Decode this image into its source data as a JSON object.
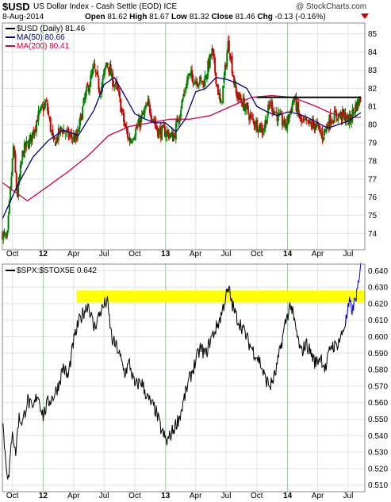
{
  "header": {
    "symbol": "$USD",
    "name": "US Dollar Index - Cash Settle (EOD) ICE",
    "date": "8-Aug-2014",
    "open_label": "Open",
    "open": "81.62",
    "high_label": "High",
    "high": "81.67",
    "low_label": "Low",
    "low": "81.32",
    "close_label": "Close",
    "close": "81.46",
    "chg_label": "Chg",
    "chg": "-0.13 (-0.16%)",
    "credit": "@ StockCharts.com"
  },
  "legend": {
    "price": "$USD (Daily) 81.46",
    "ma50": "MA(50) 80.66",
    "ma200": "MA(200) 80.41",
    "ratio": "$SPX:$STOX5E 0.642"
  },
  "colors": {
    "up_candle": "#008000",
    "down_candle": "#cc0000",
    "ma50": "#000080",
    "ma200": "#cc0044",
    "highlight": "#ffff00",
    "ratio_line": "#000000",
    "ratio_recent": "#0000cc",
    "grid": "#bbd9bb"
  },
  "chart_data": [
    {
      "type": "candlestick",
      "title": "$USD (Daily) 81.46",
      "x_ticks": [
        "Oct",
        "12",
        "Apr",
        "Jul",
        "Oct",
        "13",
        "Apr",
        "Jul",
        "Oct",
        "14",
        "Apr",
        "Jul"
      ],
      "y_ticks": [
        74,
        75,
        76,
        77,
        78,
        79,
        80,
        81,
        82,
        83,
        84,
        85
      ],
      "ylim": [
        73.1,
        85.6
      ],
      "xlim": [
        "2011-09-01",
        "2014-08-20"
      ],
      "horizontal_line": {
        "value": 81.5,
        "from": "2013-10-01",
        "to": "2014-08-08"
      },
      "series": [
        {
          "name": "$USD (Daily)",
          "x": [
            "2011-09-01",
            "2011-09-15",
            "2011-10-04",
            "2011-10-15",
            "2011-11-01",
            "2011-11-25",
            "2011-12-15",
            "2012-01-10",
            "2012-02-01",
            "2012-02-25",
            "2012-03-15",
            "2012-04-10",
            "2012-05-05",
            "2012-06-01",
            "2012-06-20",
            "2012-07-10",
            "2012-07-25",
            "2012-08-10",
            "2012-09-01",
            "2012-09-15",
            "2012-10-10",
            "2012-11-10",
            "2012-12-10",
            "2013-01-01",
            "2013-01-25",
            "2013-02-15",
            "2013-03-10",
            "2013-04-01",
            "2013-04-25",
            "2013-05-20",
            "2013-06-15",
            "2013-07-08",
            "2013-07-30",
            "2013-08-20",
            "2013-09-15",
            "2013-10-01",
            "2013-10-20",
            "2013-11-10",
            "2013-12-01",
            "2013-12-27",
            "2014-01-20",
            "2014-02-10",
            "2014-03-05",
            "2014-03-25",
            "2014-04-15",
            "2014-05-08",
            "2014-05-25",
            "2014-06-15",
            "2014-07-05",
            "2014-07-20",
            "2014-08-08"
          ],
          "values": [
            74.0,
            73.6,
            78.8,
            76.0,
            78.5,
            79.2,
            80.4,
            81.2,
            78.9,
            79.8,
            79.4,
            79.2,
            81.5,
            83.1,
            81.8,
            83.5,
            82.5,
            81.9,
            79.9,
            79.1,
            79.9,
            81.1,
            79.6,
            79.6,
            79.3,
            80.9,
            82.7,
            82.5,
            82.3,
            84.0,
            80.9,
            84.6,
            81.7,
            81.2,
            80.3,
            80.0,
            79.7,
            81.2,
            80.5,
            79.9,
            81.5,
            80.1,
            80.0,
            80.0,
            79.4,
            80.3,
            80.5,
            80.5,
            80.2,
            80.9,
            81.46
          ]
        },
        {
          "name": "MA(50)",
          "x": [
            "2011-09-01",
            "2011-10-15",
            "2011-12-01",
            "2012-01-15",
            "2012-03-01",
            "2012-04-15",
            "2012-06-01",
            "2012-07-01",
            "2012-08-01",
            "2012-09-01",
            "2012-10-01",
            "2012-11-01",
            "2012-12-01",
            "2013-01-01",
            "2013-02-01",
            "2013-03-01",
            "2013-04-01",
            "2013-05-01",
            "2013-06-01",
            "2013-07-01",
            "2013-08-01",
            "2013-09-01",
            "2013-10-01",
            "2013-11-01",
            "2013-12-01",
            "2014-01-01",
            "2014-02-01",
            "2014-03-01",
            "2014-04-01",
            "2014-05-01",
            "2014-06-01",
            "2014-07-01",
            "2014-08-08"
          ],
          "values": [
            74.8,
            76.6,
            78.2,
            79.1,
            79.7,
            79.4,
            80.8,
            82.2,
            82.6,
            81.6,
            80.6,
            80.3,
            80.1,
            80.1,
            79.6,
            80.3,
            81.8,
            82.0,
            82.6,
            82.5,
            82.3,
            82.0,
            81.0,
            80.7,
            80.5,
            80.7,
            80.6,
            80.4,
            80.1,
            79.8,
            80.0,
            80.2,
            80.66
          ]
        },
        {
          "name": "MA(200)",
          "x": [
            "2011-09-01",
            "2011-11-15",
            "2012-01-15",
            "2012-03-15",
            "2012-05-15",
            "2012-07-15",
            "2012-09-15",
            "2012-11-15",
            "2013-01-15",
            "2013-03-15",
            "2013-05-15",
            "2013-07-15",
            "2013-09-15",
            "2013-11-15",
            "2014-01-15",
            "2014-03-15",
            "2014-05-15",
            "2014-07-15",
            "2014-08-08"
          ],
          "values": [
            76.8,
            75.8,
            76.6,
            77.4,
            78.3,
            79.4,
            79.9,
            80.1,
            80.3,
            80.3,
            80.5,
            81.0,
            81.5,
            81.6,
            81.5,
            81.1,
            80.6,
            80.4,
            80.41
          ]
        }
      ]
    },
    {
      "type": "line",
      "title": "$SPX:$STOX5E 0.642",
      "x_ticks": [
        "Oct",
        "12",
        "Apr",
        "Jul",
        "Oct",
        "13",
        "Apr",
        "Jul",
        "Oct",
        "14",
        "Apr",
        "Jul"
      ],
      "y_ticks": [
        0.51,
        0.52,
        0.53,
        0.54,
        0.55,
        0.56,
        0.57,
        0.58,
        0.59,
        0.6,
        0.61,
        0.62,
        0.63,
        0.64
      ],
      "ylim": [
        0.506,
        0.644
      ],
      "xlim": [
        "2011-09-01",
        "2014-08-20"
      ],
      "highlight_band": {
        "y_from": 0.621,
        "y_to": 0.628,
        "from": "2012-04-10",
        "to": "2014-08-20"
      },
      "series": [
        {
          "name": "$SPX:$STOX5E",
          "x": [
            "2011-09-01",
            "2011-09-10",
            "2011-09-20",
            "2011-10-01",
            "2011-10-10",
            "2011-10-20",
            "2011-11-01",
            "2011-11-15",
            "2011-12-01",
            "2011-12-15",
            "2012-01-01",
            "2012-01-15",
            "2012-02-01",
            "2012-02-15",
            "2012-03-01",
            "2012-03-15",
            "2012-04-01",
            "2012-04-15",
            "2012-05-01",
            "2012-05-15",
            "2012-06-01",
            "2012-06-20",
            "2012-07-10",
            "2012-07-25",
            "2012-08-10",
            "2012-09-01",
            "2012-09-15",
            "2012-10-01",
            "2012-10-20",
            "2012-11-10",
            "2012-12-01",
            "2012-12-20",
            "2013-01-05",
            "2013-01-25",
            "2013-02-15",
            "2013-03-01",
            "2013-03-15",
            "2013-04-01",
            "2013-04-15",
            "2013-05-01",
            "2013-05-15",
            "2013-06-01",
            "2013-06-15",
            "2013-07-01",
            "2013-07-10",
            "2013-07-20",
            "2013-08-01",
            "2013-08-20",
            "2013-09-10",
            "2013-09-25",
            "2013-10-10",
            "2013-10-25",
            "2013-11-10",
            "2013-11-25",
            "2013-12-10",
            "2013-12-25",
            "2014-01-10",
            "2014-01-25",
            "2014-02-10",
            "2014-02-25",
            "2014-03-10",
            "2014-03-25",
            "2014-04-10",
            "2014-04-25",
            "2014-05-10",
            "2014-05-25",
            "2014-06-10",
            "2014-06-25",
            "2014-07-05",
            "2014-07-15",
            "2014-07-25",
            "2014-08-01",
            "2014-08-08"
          ],
          "values": [
            0.552,
            0.527,
            0.512,
            0.545,
            0.528,
            0.551,
            0.548,
            0.562,
            0.555,
            0.566,
            0.552,
            0.56,
            0.564,
            0.57,
            0.582,
            0.575,
            0.597,
            0.608,
            0.615,
            0.62,
            0.605,
            0.615,
            0.622,
            0.598,
            0.593,
            0.578,
            0.584,
            0.57,
            0.573,
            0.562,
            0.556,
            0.543,
            0.536,
            0.544,
            0.553,
            0.565,
            0.575,
            0.585,
            0.593,
            0.589,
            0.598,
            0.605,
            0.612,
            0.625,
            0.628,
            0.619,
            0.612,
            0.605,
            0.595,
            0.59,
            0.585,
            0.575,
            0.57,
            0.577,
            0.592,
            0.608,
            0.62,
            0.605,
            0.59,
            0.596,
            0.591,
            0.584,
            0.588,
            0.58,
            0.595,
            0.594,
            0.6,
            0.61,
            0.62,
            0.616,
            0.625,
            0.63,
            0.642
          ]
        }
      ]
    }
  ]
}
